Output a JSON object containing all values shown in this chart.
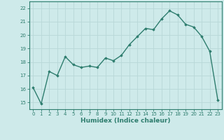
{
  "xlabel": "Humidex (Indice chaleur)",
  "x": [
    0,
    1,
    2,
    3,
    4,
    5,
    6,
    7,
    8,
    9,
    10,
    11,
    12,
    13,
    14,
    15,
    16,
    17,
    18,
    19,
    20,
    21,
    22,
    23
  ],
  "y": [
    16.1,
    14.9,
    17.3,
    17.0,
    18.4,
    17.8,
    17.6,
    17.7,
    17.6,
    18.3,
    18.1,
    18.5,
    19.3,
    19.9,
    20.5,
    20.4,
    21.2,
    21.8,
    21.5,
    20.8,
    20.6,
    19.9,
    18.8,
    15.2
  ],
  "line_color": "#2e7d6e",
  "marker": "D",
  "marker_size": 1.8,
  "line_width": 1.0,
  "bg_color": "#ceeaea",
  "grid_color": "#b8d8d8",
  "ylim": [
    14.5,
    22.5
  ],
  "xlim": [
    -0.5,
    23.5
  ],
  "yticks": [
    15,
    16,
    17,
    18,
    19,
    20,
    21,
    22
  ],
  "xticks": [
    0,
    1,
    2,
    3,
    4,
    5,
    6,
    7,
    8,
    9,
    10,
    11,
    12,
    13,
    14,
    15,
    16,
    17,
    18,
    19,
    20,
    21,
    22,
    23
  ],
  "tick_fontsize": 5.0,
  "xlabel_fontsize": 6.5,
  "spine_color": "#2e7d6e",
  "tick_color": "#2e7d6e",
  "label_color": "#2e7d6e"
}
